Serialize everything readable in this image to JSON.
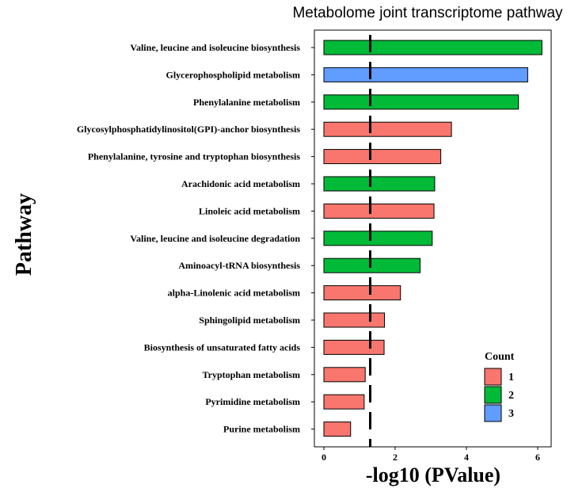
{
  "chart_data": {
    "type": "bar",
    "orientation": "horizontal",
    "title": "Metabolome joint transcriptome pathway",
    "xlabel": "-log10 (PValue)",
    "ylabel": "Pathway",
    "xlim": [
      -0.6,
      6.4
    ],
    "xticks": [
      0,
      2,
      4,
      6
    ],
    "threshold": 1.3,
    "grid": false,
    "legend_position": "right",
    "legend": {
      "title": "Count",
      "items": [
        {
          "label": "1",
          "color": "#F8766D"
        },
        {
          "label": "2",
          "color": "#00BA38"
        },
        {
          "label": "3",
          "color": "#619CFF"
        }
      ]
    },
    "categories": [
      "Valine, leucine and  isoleucine biosynthesis",
      "Glycerophospholipid  metabolism",
      "Phenylalanine  metabolism",
      "Glycosylphosphatidylinositol(GPI)-anchor  biosynthesis",
      "Phenylalanine,  tyrosine and  tryptophan  biosynthesis",
      "Arachidonic  acid metabolism",
      "Linoleic acid metabolism",
      "Valine, leucine and  isoleucine degradation",
      "Aminoacyl-tRNA  biosynthesis",
      "alpha-Linolenic  acid metabolism",
      "Sphingolipid  metabolism",
      "Biosynthesis of  unsaturated  fatty  acids",
      "Tryptophan   metabolism",
      "Pyrimidine  metabolism",
      "Purine metabolism"
    ],
    "values": [
      6.12,
      5.72,
      5.46,
      3.58,
      3.28,
      3.11,
      3.09,
      3.04,
      2.7,
      2.15,
      1.7,
      1.69,
      1.16,
      1.13,
      0.75
    ],
    "counts": [
      2,
      3,
      2,
      1,
      1,
      2,
      1,
      2,
      2,
      1,
      1,
      1,
      1,
      1,
      1
    ]
  }
}
